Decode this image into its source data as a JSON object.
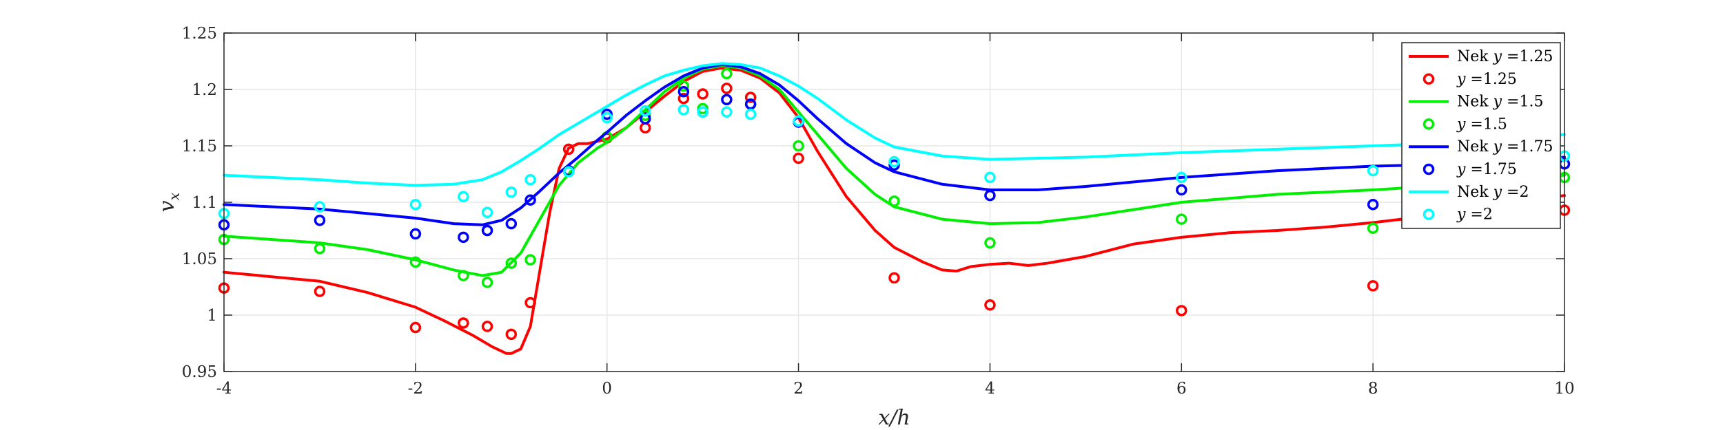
{
  "chart_data": {
    "type": "line",
    "xlabel": "x/h",
    "ylabel": "v_x",
    "xlim": [
      -4,
      10
    ],
    "ylim": [
      0.95,
      1.25
    ],
    "xticks": [
      -4,
      -2,
      0,
      2,
      4,
      6,
      8,
      10
    ],
    "yticks": [
      0.95,
      1,
      1.05,
      1.1,
      1.15,
      1.2,
      1.25
    ],
    "xtick_labels": [
      "-4",
      "-2",
      "0",
      "2",
      "4",
      "6",
      "8",
      "10"
    ],
    "ytick_labels": [
      "0.95",
      "1",
      "1.05",
      "1.1",
      "1.15",
      "1.2",
      "1.25"
    ],
    "grid": true,
    "legend_position": "top-right",
    "series": [
      {
        "name": "Nek y = 1.25",
        "legend_prefix": "Nek ",
        "legend_var": "y",
        "legend_rest": " =1.25",
        "kind": "line",
        "color": "#ff0000",
        "x": [
          -4,
          -3,
          -2.5,
          -2,
          -1.7,
          -1.4,
          -1.2,
          -1.05,
          -1.0,
          -0.9,
          -0.8,
          -0.7,
          -0.6,
          -0.5,
          -0.4,
          -0.3,
          -0.2,
          0,
          0.2,
          0.4,
          0.6,
          0.8,
          1.0,
          1.2,
          1.4,
          1.6,
          1.8,
          2.0,
          2.2,
          2.5,
          2.8,
          3.0,
          3.3,
          3.5,
          3.65,
          3.8,
          4.0,
          4.2,
          4.4,
          4.6,
          5.0,
          5.5,
          6.0,
          6.5,
          7.0,
          7.5,
          8.0,
          8.5,
          9.0,
          9.5,
          10
        ],
        "y": [
          1.038,
          1.03,
          1.02,
          1.007,
          0.995,
          0.982,
          0.972,
          0.966,
          0.966,
          0.97,
          0.99,
          1.04,
          1.09,
          1.13,
          1.148,
          1.152,
          1.152,
          1.156,
          1.166,
          1.18,
          1.194,
          1.207,
          1.216,
          1.219,
          1.217,
          1.21,
          1.197,
          1.175,
          1.145,
          1.105,
          1.075,
          1.06,
          1.047,
          1.04,
          1.039,
          1.043,
          1.045,
          1.046,
          1.044,
          1.046,
          1.052,
          1.063,
          1.069,
          1.073,
          1.075,
          1.078,
          1.082,
          1.087,
          1.093,
          1.1,
          1.106
        ]
      },
      {
        "name": "y = 1.25",
        "legend_prefix": "",
        "legend_var": "y",
        "legend_rest": " =1.25",
        "kind": "scatter",
        "color": "#ff0000",
        "x": [
          -4,
          -3,
          -2,
          -1.5,
          -1.25,
          -1.0,
          -0.8,
          -0.4,
          0,
          0.4,
          0.8,
          1.0,
          1.25,
          1.5,
          2,
          3,
          4,
          6,
          8,
          10
        ],
        "y": [
          1.024,
          1.021,
          0.989,
          0.993,
          0.99,
          0.983,
          1.011,
          1.147,
          1.157,
          1.166,
          1.192,
          1.196,
          1.201,
          1.193,
          1.139,
          1.033,
          1.009,
          1.004,
          1.026,
          1.093
        ]
      },
      {
        "name": "Nek y = 1.5",
        "legend_prefix": "Nek ",
        "legend_var": "y",
        "legend_rest": " =1.5",
        "kind": "line",
        "color": "#00ee00",
        "x": [
          -4,
          -3,
          -2.5,
          -2,
          -1.6,
          -1.3,
          -1.1,
          -0.9,
          -0.7,
          -0.5,
          -0.3,
          -0.1,
          0,
          0.2,
          0.4,
          0.6,
          0.8,
          1.0,
          1.2,
          1.4,
          1.6,
          1.8,
          2.0,
          2.2,
          2.5,
          2.8,
          3.0,
          3.5,
          4.0,
          4.5,
          5,
          6,
          7,
          8,
          9,
          10
        ],
        "y": [
          1.07,
          1.064,
          1.058,
          1.049,
          1.04,
          1.035,
          1.038,
          1.055,
          1.085,
          1.115,
          1.135,
          1.148,
          1.153,
          1.166,
          1.182,
          1.198,
          1.21,
          1.218,
          1.221,
          1.219,
          1.212,
          1.2,
          1.18,
          1.16,
          1.13,
          1.107,
          1.096,
          1.085,
          1.081,
          1.082,
          1.087,
          1.1,
          1.107,
          1.111,
          1.116,
          1.124
        ]
      },
      {
        "name": "y = 1.5",
        "legend_prefix": "",
        "legend_var": "y",
        "legend_rest": " =1.5",
        "kind": "scatter",
        "color": "#00ee00",
        "x": [
          -4,
          -3,
          -2,
          -1.5,
          -1.25,
          -1.0,
          -0.8,
          -0.4,
          0,
          0.4,
          0.8,
          1.0,
          1.25,
          1.5,
          2,
          3,
          4,
          6,
          8,
          10
        ],
        "y": [
          1.067,
          1.059,
          1.047,
          1.035,
          1.029,
          1.046,
          1.049,
          1.127,
          1.158,
          1.177,
          1.203,
          1.183,
          1.214,
          1.187,
          1.15,
          1.101,
          1.064,
          1.085,
          1.077,
          1.122
        ]
      },
      {
        "name": "Nek y = 1.75",
        "legend_prefix": "Nek ",
        "legend_var": "y",
        "legend_rest": " =1.75",
        "kind": "line",
        "color": "#0000ff",
        "x": [
          -4,
          -3,
          -2.5,
          -2,
          -1.6,
          -1.3,
          -1.1,
          -0.9,
          -0.7,
          -0.5,
          -0.3,
          -0.1,
          0,
          0.2,
          0.4,
          0.6,
          0.8,
          1.0,
          1.2,
          1.4,
          1.6,
          1.8,
          2.0,
          2.2,
          2.5,
          2.8,
          3.0,
          3.5,
          4.0,
          4.5,
          5,
          6,
          7,
          8,
          9,
          10
        ],
        "y": [
          1.098,
          1.094,
          1.09,
          1.086,
          1.081,
          1.08,
          1.084,
          1.095,
          1.11,
          1.126,
          1.14,
          1.155,
          1.162,
          1.177,
          1.19,
          1.202,
          1.212,
          1.219,
          1.222,
          1.22,
          1.214,
          1.204,
          1.19,
          1.174,
          1.152,
          1.135,
          1.127,
          1.116,
          1.111,
          1.111,
          1.114,
          1.122,
          1.128,
          1.132,
          1.134,
          1.14
        ]
      },
      {
        "name": "y = 1.75",
        "legend_prefix": "",
        "legend_var": "y",
        "legend_rest": " =1.75",
        "kind": "scatter",
        "color": "#0000ff",
        "x": [
          -4,
          -3,
          -2,
          -1.5,
          -1.25,
          -1.0,
          -0.8,
          -0.4,
          0,
          0.4,
          0.8,
          1.0,
          1.25,
          1.5,
          2,
          3,
          4,
          6,
          8,
          10
        ],
        "y": [
          1.08,
          1.084,
          1.072,
          1.069,
          1.075,
          1.081,
          1.102,
          1.128,
          1.178,
          1.174,
          1.198,
          1.18,
          1.191,
          1.187,
          1.171,
          1.133,
          1.106,
          1.111,
          1.098,
          1.134
        ]
      },
      {
        "name": "Nek y = 2",
        "legend_prefix": "Nek ",
        "legend_var": "y",
        "legend_rest": " =2",
        "kind": "line",
        "color": "#00ffff",
        "x": [
          -4,
          -3,
          -2.5,
          -2,
          -1.6,
          -1.3,
          -1.1,
          -0.9,
          -0.7,
          -0.5,
          -0.3,
          -0.1,
          0,
          0.2,
          0.4,
          0.6,
          0.8,
          1.0,
          1.2,
          1.4,
          1.6,
          1.8,
          2.0,
          2.2,
          2.5,
          2.8,
          3.0,
          3.5,
          4.0,
          4.5,
          5,
          6,
          7,
          8,
          9,
          10
        ],
        "y": [
          1.124,
          1.12,
          1.117,
          1.115,
          1.116,
          1.12,
          1.127,
          1.137,
          1.148,
          1.16,
          1.17,
          1.18,
          1.185,
          1.195,
          1.204,
          1.212,
          1.217,
          1.221,
          1.223,
          1.222,
          1.219,
          1.212,
          1.203,
          1.192,
          1.173,
          1.157,
          1.149,
          1.141,
          1.138,
          1.139,
          1.14,
          1.144,
          1.147,
          1.15,
          1.153,
          1.16
        ]
      },
      {
        "name": "y = 2",
        "legend_prefix": "",
        "legend_var": "y",
        "legend_rest": " =2",
        "kind": "scatter",
        "color": "#00ffff",
        "x": [
          -4,
          -3,
          -2,
          -1.5,
          -1.25,
          -1.0,
          -0.8,
          -0.4,
          0,
          0.4,
          0.8,
          1.0,
          1.25,
          1.5,
          2,
          3,
          4,
          6,
          8,
          10
        ],
        "y": [
          1.09,
          1.096,
          1.098,
          1.105,
          1.091,
          1.109,
          1.12,
          1.127,
          1.175,
          1.181,
          1.182,
          1.18,
          1.18,
          1.178,
          1.172,
          1.136,
          1.122,
          1.122,
          1.128,
          1.141
        ]
      }
    ]
  }
}
